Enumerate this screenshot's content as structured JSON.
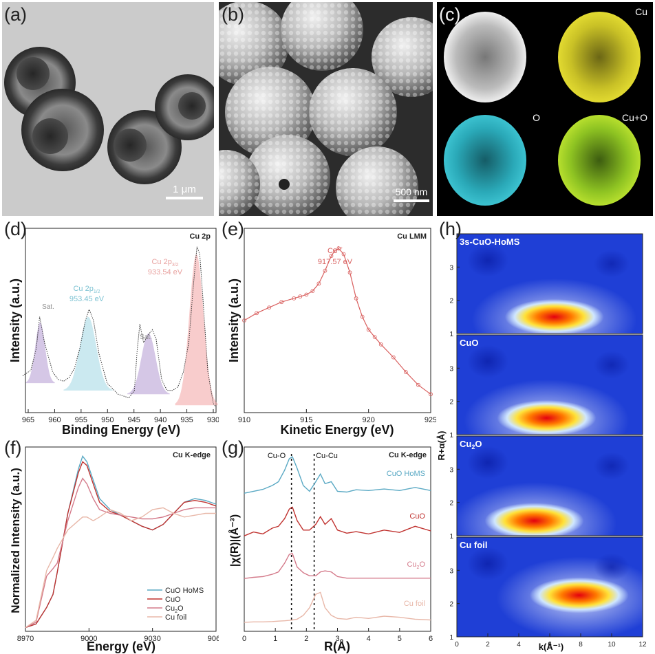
{
  "labels": {
    "a": "(a)",
    "b": "(b)",
    "c": "(c)",
    "d": "(d)",
    "e": "(e)",
    "f": "(f)",
    "g": "(g)",
    "h": "(h)"
  },
  "panel_a": {
    "scalebar": "1 μm"
  },
  "panel_b": {
    "scalebar": "500 nm"
  },
  "panel_c": {
    "label_cu": "Cu",
    "label_o": "O",
    "label_cuo": "Cu+O"
  },
  "colors": {
    "cu_map": "#d8d02a",
    "o_map": "#2fb5c4",
    "cuo_map": "#9ed126",
    "cuo_homs": "#5aa9c4",
    "cuo": "#c0322f",
    "cu2o": "#d47a8a",
    "cu_foil": "#e8b7a8",
    "xps_fit_red": "#f2a3a3",
    "xps_fit_blue": "#a9dbe6",
    "xps_fit_purple": "#b9a2d6",
    "auger": "#d9605f"
  },
  "chart_data": [
    {
      "panel": "d",
      "type": "line",
      "xlabel": "Binding Energy (eV)",
      "ylabel": "Intensity (a.u.)",
      "xlim": [
        965,
        930
      ],
      "x_reversed": true,
      "xticks": [
        "965",
        "960",
        "955",
        "950",
        "945",
        "940",
        "935",
        "930"
      ],
      "annotations": {
        "corner": "Cu 2p",
        "sat1": "Sat.",
        "sat2": "Sat.",
        "p12_main": "Cu 2p",
        "p12_sub": "1/2",
        "p12_value": "953.45 eV",
        "p32_main": "Cu 2p",
        "p32_sub": "3/2",
        "p32_value": "933.54 eV"
      },
      "x": [
        965.5,
        964,
        963,
        962.4,
        961.5,
        960,
        959,
        958,
        957,
        956,
        955,
        954,
        953.3,
        952.5,
        951.5,
        950,
        948,
        946,
        945,
        944.5,
        944,
        943.3,
        942.5,
        941.7,
        941,
        940,
        939,
        938,
        937,
        936,
        935,
        934.2,
        933.5,
        933,
        932.5,
        931.5,
        930.5,
        930
      ],
      "y": [
        0.2,
        0.23,
        0.35,
        0.52,
        0.38,
        0.22,
        0.18,
        0.17,
        0.19,
        0.24,
        0.35,
        0.5,
        0.56,
        0.5,
        0.32,
        0.16,
        0.1,
        0.08,
        0.12,
        0.33,
        0.48,
        0.38,
        0.42,
        0.45,
        0.4,
        0.18,
        0.12,
        0.12,
        0.14,
        0.22,
        0.38,
        0.68,
        0.9,
        0.86,
        0.66,
        0.22,
        0.05,
        0.03
      ]
    },
    {
      "panel": "e",
      "type": "scatter",
      "xlabel": "Kinetic Energy (eV)",
      "ylabel": "Intensity (a.u.)",
      "xlim": [
        910,
        925
      ],
      "xticks": [
        "910",
        "915",
        "920",
        "925"
      ],
      "annotations": {
        "corner": "Cu LMM",
        "peak_ion": "Cu",
        "peak_ion_sup": "2+",
        "peak_value": "917.57 eV"
      },
      "x": [
        910,
        911,
        912,
        913,
        914,
        914.5,
        915,
        915.5,
        916,
        916.5,
        917,
        917.3,
        917.6,
        918,
        918.5,
        919,
        919.5,
        920,
        920.5,
        921,
        922,
        923,
        924,
        925
      ],
      "y": [
        0.5,
        0.54,
        0.57,
        0.6,
        0.62,
        0.63,
        0.64,
        0.66,
        0.7,
        0.77,
        0.85,
        0.88,
        0.89,
        0.86,
        0.76,
        0.62,
        0.52,
        0.45,
        0.41,
        0.37,
        0.3,
        0.22,
        0.15,
        0.1
      ]
    },
    {
      "panel": "f",
      "type": "line",
      "xlabel": "Energy (eV)",
      "ylabel": "Normalized Intensity (a.u.)",
      "xlim": [
        8970,
        9060
      ],
      "xticks": [
        "8970",
        "9000",
        "9030",
        "9060"
      ],
      "annotations": {
        "corner": "Cu K-edge"
      },
      "legend": {
        "placement": "bottom-right",
        "entries": [
          {
            "label": "CuO HoMS"
          },
          {
            "label": "CuO"
          },
          {
            "main": "Cu",
            "sub": "2",
            "rest": "O"
          },
          {
            "label": "Cu foil"
          }
        ]
      },
      "x": [
        8970,
        8975,
        8980,
        8983,
        8985,
        8990,
        8995,
        8997,
        8999,
        9002,
        9005,
        9010,
        9015,
        9020,
        9025,
        9030,
        9035,
        9040,
        9045,
        9050,
        9055,
        9060
      ],
      "series": [
        {
          "key": "cuo_homs",
          "y": [
            0.02,
            0.04,
            0.13,
            0.2,
            0.32,
            0.64,
            0.88,
            0.95,
            0.92,
            0.82,
            0.72,
            0.66,
            0.63,
            0.6,
            0.57,
            0.55,
            0.58,
            0.64,
            0.7,
            0.72,
            0.71,
            0.69
          ]
        },
        {
          "key": "cuo",
          "y": [
            0.02,
            0.04,
            0.13,
            0.2,
            0.32,
            0.64,
            0.86,
            0.92,
            0.9,
            0.8,
            0.7,
            0.65,
            0.63,
            0.6,
            0.57,
            0.55,
            0.58,
            0.64,
            0.7,
            0.71,
            0.7,
            0.68
          ]
        },
        {
          "key": "cu2o",
          "y": [
            0.02,
            0.05,
            0.3,
            0.34,
            0.37,
            0.6,
            0.78,
            0.83,
            0.8,
            0.72,
            0.66,
            0.64,
            0.63,
            0.62,
            0.61,
            0.61,
            0.62,
            0.64,
            0.66,
            0.67,
            0.67,
            0.67
          ]
        },
        {
          "key": "cu_foil",
          "y": [
            0.02,
            0.06,
            0.33,
            0.4,
            0.45,
            0.55,
            0.6,
            0.62,
            0.62,
            0.6,
            0.62,
            0.66,
            0.64,
            0.6,
            0.62,
            0.66,
            0.67,
            0.64,
            0.62,
            0.63,
            0.64,
            0.64
          ]
        }
      ]
    },
    {
      "panel": "g",
      "type": "line",
      "xlabel": "R(Å)",
      "ylabel": "|χ(R)|(Å⁻³)",
      "xlim": [
        0,
        6
      ],
      "xticks": [
        "0",
        "1",
        "2",
        "3",
        "4",
        "5",
        "6"
      ],
      "annotations": {
        "corner": "Cu K-edge",
        "cu_o": "Cu-O",
        "cu_cu": "Cu-Cu",
        "cu_o_r": 1.52,
        "cu_cu_r": 2.25
      },
      "labels": [
        {
          "key": "cuo_homs",
          "text": "CuO HoMS"
        },
        {
          "key": "cuo",
          "text": "CuO"
        },
        {
          "key": "cu2o",
          "main": "Cu",
          "sub": "2",
          "rest": "O"
        },
        {
          "key": "cu_foil",
          "text": "Cu foil"
        }
      ],
      "x": [
        0,
        0.3,
        0.6,
        0.9,
        1.1,
        1.3,
        1.45,
        1.55,
        1.7,
        1.9,
        2.1,
        2.3,
        2.45,
        2.6,
        2.8,
        3,
        3.3,
        3.6,
        4,
        4.5,
        5,
        5.5,
        6
      ],
      "series": [
        {
          "key": "cuo_homs",
          "offset": 3,
          "y": [
            0.05,
            0.1,
            0.15,
            0.25,
            0.35,
            0.65,
            0.95,
            1.0,
            0.7,
            0.25,
            0.1,
            0.35,
            0.55,
            0.3,
            0.35,
            0.1,
            0.08,
            0.14,
            0.12,
            0.16,
            0.12,
            0.2,
            0.12
          ]
        },
        {
          "key": "cuo",
          "offset": 2,
          "y": [
            0.05,
            0.15,
            0.1,
            0.25,
            0.3,
            0.5,
            0.75,
            0.8,
            0.45,
            0.2,
            0.2,
            0.35,
            0.55,
            0.35,
            0.5,
            0.2,
            0.12,
            0.16,
            0.1,
            0.2,
            0.14,
            0.3,
            0.18
          ]
        },
        {
          "key": "cu2o",
          "offset": 1,
          "y": [
            0.05,
            0.08,
            0.1,
            0.16,
            0.22,
            0.45,
            0.68,
            0.7,
            0.35,
            0.2,
            0.12,
            0.12,
            0.22,
            0.25,
            0.22,
            0.1,
            0.06,
            0.06,
            0.06,
            0.06,
            0.06,
            0.06,
            0.06
          ]
        },
        {
          "key": "cu_foil",
          "offset": 0,
          "y": [
            0.02,
            0.03,
            0.03,
            0.04,
            0.05,
            0.06,
            0.07,
            0.08,
            0.1,
            0.2,
            0.4,
            0.75,
            0.8,
            0.4,
            0.2,
            0.12,
            0.1,
            0.15,
            0.12,
            0.18,
            0.15,
            0.1,
            0.08
          ]
        }
      ]
    },
    {
      "panel": "h",
      "type": "heatmap",
      "xlabel": "k(Å⁻¹)",
      "ylabel": "R+α(Å)",
      "xlim": [
        0,
        12
      ],
      "ylim": [
        1,
        4
      ],
      "xticks": [
        "0",
        "2",
        "4",
        "6",
        "8",
        "10",
        "12"
      ],
      "yticks": [
        "1",
        "2",
        "3"
      ],
      "maps": [
        {
          "key": "cuo_homs",
          "title": "3s-CuO-HoMS",
          "peak_k": 6.3,
          "peak_r": 1.5
        },
        {
          "key": "cuo",
          "title": "CuO",
          "peak_k": 5.8,
          "peak_r": 1.5
        },
        {
          "key": "cu2o",
          "main": "Cu",
          "sub": "2",
          "rest": "O",
          "peak_k": 5.0,
          "peak_r": 1.45
        },
        {
          "key": "cu_foil",
          "title": "Cu foil",
          "peak_k": 7.9,
          "peak_r": 2.25
        }
      ]
    }
  ]
}
